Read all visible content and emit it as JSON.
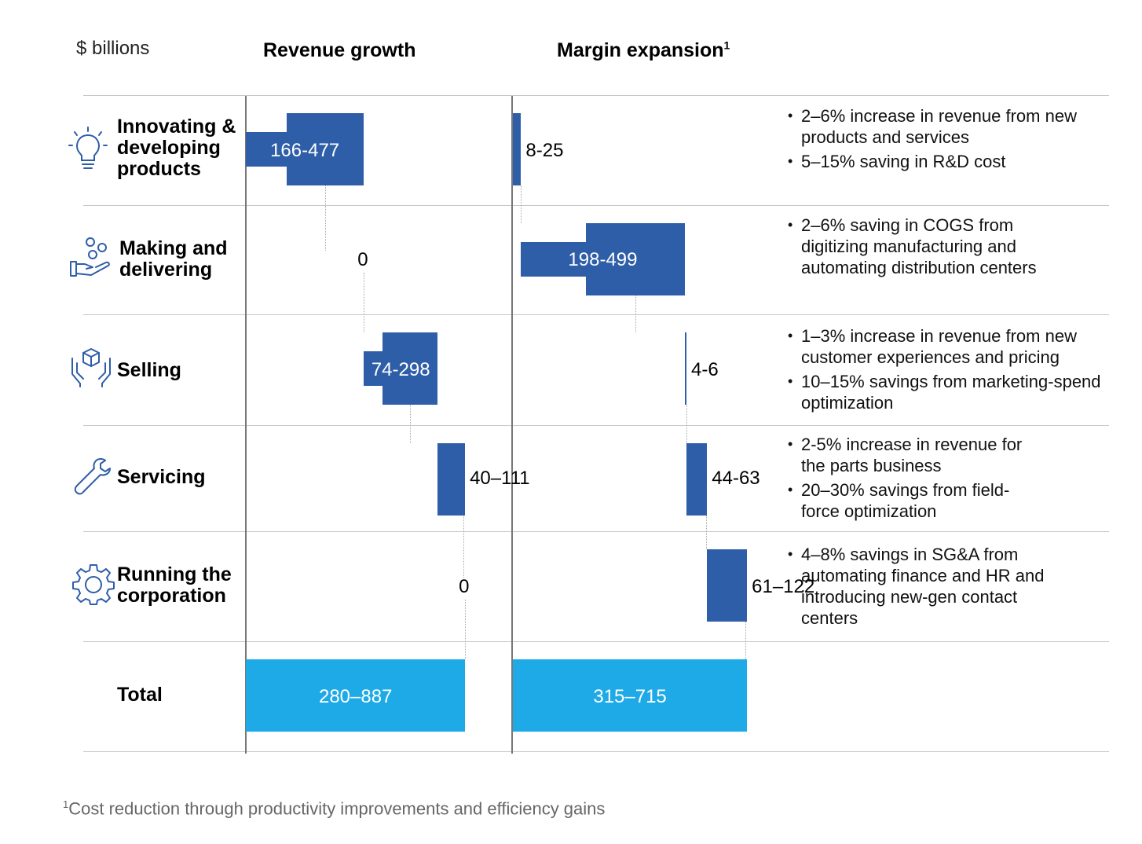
{
  "units_label": "$ billions",
  "columns": {
    "revenue": "Revenue growth",
    "margin": "Margin expansion",
    "margin_footnote_mark": "1"
  },
  "footnote": {
    "mark": "1",
    "text": "Cost reduction through productivity improvements and efficiency gains"
  },
  "colors": {
    "bar": "#2f5ea8",
    "total": "#1eaae7",
    "icon": "#2f5ea8"
  },
  "rows": [
    {
      "label_lines": [
        "Innovating &",
        "developing",
        "products"
      ],
      "icon": "lightbulb-icon",
      "bullets": [
        "2–6% increase in revenue from new products and services",
        "5–15% saving in R&D cost"
      ]
    },
    {
      "label_lines": [
        "Making and",
        "delivering"
      ],
      "icon": "hand-coins-icon",
      "bullets": [
        "2–6% saving in COGS from digitizing manufacturing and automating distribution centers"
      ]
    },
    {
      "label_lines": [
        "Selling"
      ],
      "icon": "hands-box-icon",
      "bullets": [
        "1–3% increase in revenue from new customer experiences and pricing",
        "10–15% savings from marketing-spend optimization"
      ]
    },
    {
      "label_lines": [
        "Servicing"
      ],
      "icon": "wrench-icon",
      "bullets": [
        "2-5% increase in revenue for the parts business",
        "20–30% savings from field-force optimization"
      ]
    },
    {
      "label_lines": [
        "Running the",
        "corporation"
      ],
      "icon": "gear-icon",
      "bullets": [
        "4–8% savings in SG&A from automating finance and HR and introducing new-gen contact centers"
      ]
    },
    {
      "label_lines": [
        "Total"
      ],
      "icon": ""
    }
  ],
  "chart_data": [
    {
      "type": "bar",
      "subtype": "waterfall-range",
      "title": "Revenue growth",
      "unit": "$ billions",
      "categories": [
        "Innovating & developing products",
        "Making and delivering",
        "Selling",
        "Servicing",
        "Running the corporation",
        "Total"
      ],
      "labels": [
        "166-477",
        "0",
        "74-298",
        "40–111",
        "0",
        "280–887"
      ],
      "low": [
        166,
        0,
        74,
        40,
        0,
        280
      ],
      "high": [
        477,
        0,
        298,
        111,
        0,
        887
      ],
      "is_total": [
        false,
        false,
        false,
        false,
        false,
        true
      ]
    },
    {
      "type": "bar",
      "subtype": "waterfall-range",
      "title": "Margin expansion",
      "unit": "$ billions",
      "categories": [
        "Innovating & developing products",
        "Making and delivering",
        "Selling",
        "Servicing",
        "Running the corporation",
        "Total"
      ],
      "labels": [
        "8-25",
        "198-499",
        "4-6",
        "44-63",
        "61–122",
        "315–715"
      ],
      "low": [
        8,
        198,
        4,
        44,
        61,
        315
      ],
      "high": [
        25,
        499,
        6,
        63,
        122,
        715
      ],
      "is_total": [
        false,
        false,
        false,
        false,
        false,
        true
      ]
    }
  ]
}
